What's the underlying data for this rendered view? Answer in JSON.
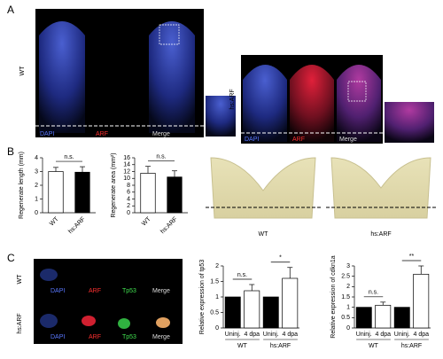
{
  "panel_labels": [
    "A",
    "B",
    "C"
  ],
  "panel_a": {
    "wt_label": "WT",
    "arf_label": "hs:ARF",
    "wt_channels": [
      "DAPI",
      "ARF",
      "Merge"
    ],
    "arf_channels": [
      "DAPI",
      "ARF",
      "Merge"
    ]
  },
  "panel_b": {
    "fin_labels": [
      "WT",
      "hs:ARF"
    ]
  },
  "panel_c": {
    "row_labels": [
      "WT",
      "hs:ARF"
    ],
    "wt_channels": [
      "DAPI",
      "ARF",
      "Tp53",
      "Merge"
    ],
    "arf_channels": [
      "DAPI",
      "ARF",
      "Tp53",
      "Merge"
    ]
  },
  "chart_data": [
    {
      "type": "bar",
      "ylabel": "Regenerate length (mm)",
      "categories": [
        "WT",
        "hs:ARF"
      ],
      "values": [
        3.0,
        2.95
      ],
      "errors": [
        0.3,
        0.4
      ],
      "colors": [
        "#ffffff",
        "#000000"
      ],
      "ylim": [
        0,
        4
      ],
      "yticks": [
        0,
        1,
        2,
        3,
        4
      ],
      "annotations": [
        "n.s."
      ]
    },
    {
      "type": "bar",
      "ylabel": "Regenerate area (mm²)",
      "categories": [
        "WT",
        "hs:ARF"
      ],
      "values": [
        11.5,
        10.4
      ],
      "errors": [
        2.0,
        1.8
      ],
      "colors": [
        "#ffffff",
        "#000000"
      ],
      "ylim": [
        0,
        16
      ],
      "yticks": [
        0,
        2,
        4,
        6,
        8,
        10,
        12,
        14,
        16
      ],
      "annotations": [
        "n.s."
      ]
    },
    {
      "type": "bar",
      "ylabel": "Relative expression of tp53",
      "categories": [
        "Uninj.",
        "4 dpa",
        "Uninj.",
        "4 dpa"
      ],
      "groups": [
        "WT",
        "hs:ARF"
      ],
      "values": [
        1,
        1.2,
        1,
        1.6
      ],
      "errors": [
        0,
        0.2,
        0,
        0.35
      ],
      "colors": [
        "#000000",
        "#ffffff",
        "#000000",
        "#ffffff"
      ],
      "ylim": [
        0,
        2
      ],
      "yticks": [
        0,
        0.5,
        1,
        1.5,
        2
      ],
      "annotations": [
        "n.s.",
        "*"
      ]
    },
    {
      "type": "bar",
      "ylabel": "Relative expression of cdkn1a",
      "categories": [
        "Uninj.",
        "4 dpa",
        "Uninj.",
        "4 dpa"
      ],
      "groups": [
        "WT",
        "hs:ARF"
      ],
      "values": [
        1,
        1.1,
        1,
        2.6
      ],
      "errors": [
        0,
        0.15,
        0,
        0.4
      ],
      "colors": [
        "#000000",
        "#ffffff",
        "#000000",
        "#ffffff"
      ],
      "ylim": [
        0,
        3
      ],
      "yticks": [
        0,
        0.5,
        1,
        1.5,
        2,
        2.5,
        3
      ],
      "annotations": [
        "n.s.",
        "**"
      ]
    }
  ]
}
